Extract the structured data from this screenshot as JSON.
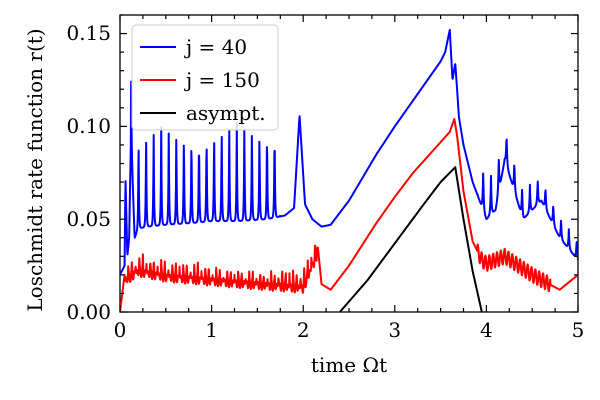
{
  "chart_data": {
    "type": "line",
    "title": "",
    "xlabel": "time Ωt",
    "ylabel": "Loschmidt rate function r(t)",
    "xlim": [
      0,
      5
    ],
    "ylim": [
      0,
      0.16
    ],
    "x_ticks": [
      "0",
      "1",
      "2",
      "3",
      "4",
      "5"
    ],
    "y_ticks": [
      "0.00",
      "0.05",
      "0.10",
      "0.15"
    ],
    "legend_position": "top-left",
    "series": [
      {
        "name": "j = 40",
        "color": "#0000ff",
        "description": "regular cusp peaks ~0.10 on baseline ~0.05 until t~2.2, then rise to ~0.15 at t~3.6, decay with peaks",
        "x": [
          0,
          0.05,
          0.06,
          0.08,
          0.1,
          0.12,
          0.16,
          0.2,
          0.3,
          0.5,
          0.8,
          1.0,
          1.3,
          1.6,
          1.8,
          1.9,
          1.96,
          2.02,
          2.1,
          2.2,
          2.3,
          2.5,
          2.8,
          3.0,
          3.2,
          3.4,
          3.5,
          3.55,
          3.6,
          3.63,
          3.66,
          3.68,
          3.7,
          3.75,
          3.85,
          4.0,
          4.1,
          4.2,
          4.4,
          4.6,
          4.8,
          5.0
        ],
        "y": [
          0.02,
          0.025,
          0.072,
          0.03,
          0.04,
          0.095,
          0.04,
          0.045,
          0.046,
          0.047,
          0.048,
          0.049,
          0.049,
          0.05,
          0.052,
          0.056,
          0.106,
          0.058,
          0.05,
          0.046,
          0.047,
          0.06,
          0.085,
          0.1,
          0.114,
          0.128,
          0.135,
          0.14,
          0.152,
          0.125,
          0.134,
          0.12,
          0.105,
          0.09,
          0.07,
          0.05,
          0.055,
          0.082,
          0.05,
          0.06,
          0.04,
          0.028
        ]
      },
      {
        "name": "j = 150",
        "color": "#ff0000",
        "description": "dense oscillation ~0.02 until t~2.2, then rise to ~0.10 at t~3.65, drop and decay ~0.02",
        "x": [
          0,
          0.05,
          0.2,
          0.5,
          1.0,
          1.5,
          2.0,
          2.16,
          2.2,
          2.3,
          2.5,
          2.8,
          3.0,
          3.2,
          3.4,
          3.6,
          3.65,
          3.68,
          3.75,
          3.85,
          3.95,
          4.0,
          4.2,
          4.5,
          4.8,
          5.0
        ],
        "y": [
          0.0,
          0.02,
          0.025,
          0.022,
          0.02,
          0.018,
          0.016,
          0.035,
          0.015,
          0.012,
          0.025,
          0.048,
          0.062,
          0.075,
          0.086,
          0.097,
          0.104,
          0.095,
          0.065,
          0.038,
          0.028,
          0.026,
          0.03,
          0.02,
          0.012,
          0.02
        ]
      },
      {
        "name": "asympt.",
        "color": "#000000",
        "description": "zero until t~2.4, linear-ish rise to ~0.078 at t~3.66, falls to 0 at t~3.95",
        "x": [
          2.4,
          2.7,
          3.0,
          3.3,
          3.5,
          3.66,
          3.75,
          3.85,
          3.95
        ],
        "y": [
          0.0,
          0.017,
          0.037,
          0.057,
          0.07,
          0.078,
          0.05,
          0.022,
          0.0
        ]
      }
    ]
  }
}
